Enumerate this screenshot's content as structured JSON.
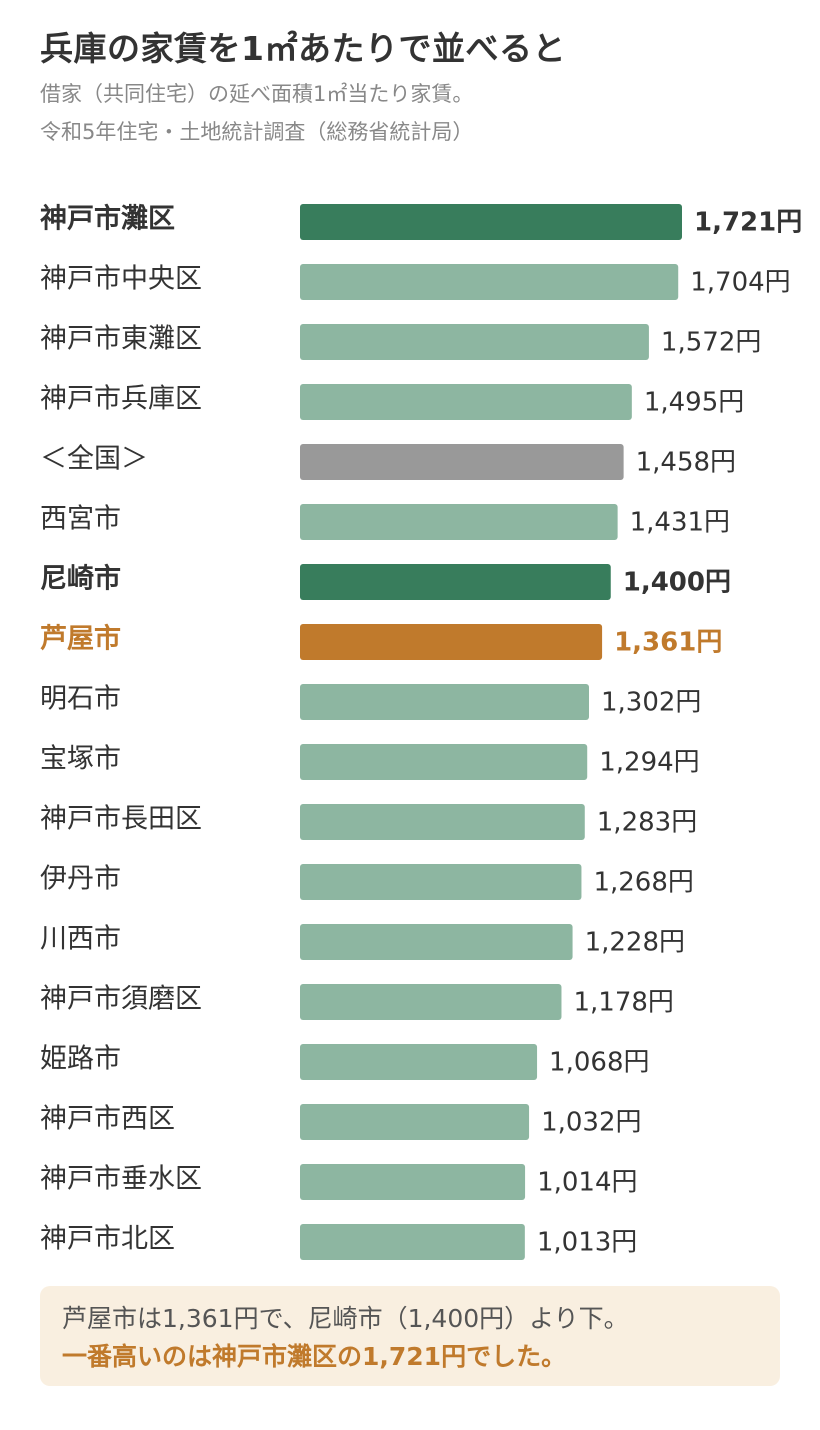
{
  "header": {
    "title": "兵庫の家賃を1㎡あたりで並べると",
    "subtitle_line1": "借家（共同住宅）の延べ面積1㎡当たり家賃。",
    "subtitle_line2": "令和5年住宅・土地統計調査（総務省統計局）"
  },
  "colors": {
    "default": "#8db6a1",
    "highlight": "#387d5c",
    "national": "#999999",
    "ashiya": "#c07a2c",
    "text": "#333333",
    "note_bg": "#f9efe0"
  },
  "chart_data": {
    "type": "bar",
    "orientation": "horizontal",
    "unit": "円",
    "xlim": [
      0,
      1721
    ],
    "categories": [
      "神戸市灘区",
      "神戸市中央区",
      "神戸市東灘区",
      "神戸市兵庫区",
      "＜全国＞",
      "西宮市",
      "尼崎市",
      "芦屋市",
      "明石市",
      "宝塚市",
      "神戸市長田区",
      "伊丹市",
      "川西市",
      "神戸市須磨区",
      "姫路市",
      "神戸市西区",
      "神戸市垂水区",
      "神戸市北区"
    ],
    "values": [
      1721,
      1704,
      1572,
      1495,
      1458,
      1431,
      1400,
      1361,
      1302,
      1294,
      1283,
      1268,
      1228,
      1178,
      1068,
      1032,
      1014,
      1013
    ],
    "value_labels": [
      "1,721円",
      "1,704円",
      "1,572円",
      "1,495円",
      "1,458円",
      "1,431円",
      "1,400円",
      "1,361円",
      "1,302円",
      "1,294円",
      "1,283円",
      "1,268円",
      "1,228円",
      "1,178円",
      "1,068円",
      "1,032円",
      "1,014円",
      "1,013円"
    ],
    "styles": [
      "highlight",
      "default",
      "default",
      "default",
      "national",
      "default",
      "highlight",
      "ashiya",
      "default",
      "default",
      "default",
      "default",
      "default",
      "default",
      "default",
      "default",
      "default",
      "default"
    ],
    "bold": [
      true,
      false,
      false,
      false,
      false,
      false,
      true,
      true,
      false,
      false,
      false,
      false,
      false,
      false,
      false,
      false,
      false,
      false
    ]
  },
  "note": {
    "line1": "芦屋市は1,361円で、尼崎市（1,400円）より下。",
    "line2": "一番高いのは神戸市灘区の1,721円でした。"
  }
}
